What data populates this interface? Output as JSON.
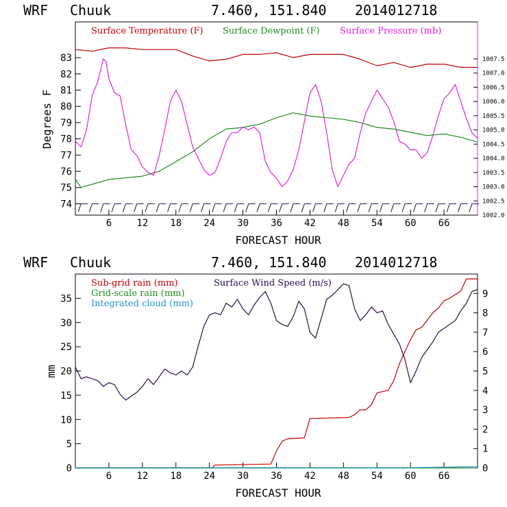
{
  "header": {
    "model": "WRF",
    "station": "Chuuk",
    "coords": "7.460, 151.840",
    "init": "2014012718"
  },
  "colors": {
    "temperature": "#c00000",
    "dewpoint": "#1e8a1e",
    "pressure": "#e020e0",
    "subgrid_rain": "#c00000",
    "gridscale_rain": "#1e8a1e",
    "cloud": "#1e90d0",
    "wind": "#2a0a4a",
    "barb": "#2a0a4a"
  },
  "chart_data": [
    {
      "type": "line",
      "legend": [
        "Surface Temperature (F)",
        "Surface Dewpoint (F)",
        "Surface Pressure (mb)"
      ],
      "xlabel": "FORECAST HOUR",
      "ylabel": "Degrees F",
      "xlim": [
        0,
        72
      ],
      "ylim": [
        73.3,
        85.2
      ],
      "xticks": [
        "6",
        "12",
        "18",
        "24",
        "30",
        "36",
        "42",
        "48",
        "54",
        "60",
        "66"
      ],
      "yticks": [
        "74",
        "75",
        "76",
        "77",
        "78",
        "79",
        "80",
        "81",
        "82",
        "83"
      ],
      "y2lim": [
        1002.0,
        1008.8
      ],
      "y2ticks": [
        "1002.0",
        "1002.5",
        "1003.0",
        "1003.5",
        "1004.0",
        "1004.5",
        "1005.0",
        "1005.5",
        "1006.0",
        "1006.5",
        "1007.0",
        "1007.5"
      ],
      "series": [
        {
          "name": "Surface Temperature (F)",
          "axis": "left",
          "x": [
            0,
            3,
            6,
            9,
            12,
            15,
            18,
            21,
            24,
            27,
            30,
            33,
            36,
            39,
            42,
            45,
            48,
            51,
            54,
            57,
            60,
            63,
            66,
            69,
            72
          ],
          "y": [
            83.5,
            83.4,
            83.6,
            83.6,
            83.5,
            83.5,
            83.5,
            83.1,
            82.8,
            82.9,
            83.2,
            83.2,
            83.3,
            83.0,
            83.2,
            83.2,
            83.2,
            82.9,
            82.5,
            82.7,
            82.4,
            82.6,
            82.6,
            82.4,
            82.4
          ]
        },
        {
          "name": "Surface Dewpoint (F)",
          "axis": "left",
          "x": [
            0,
            1,
            3,
            6,
            9,
            12,
            15,
            18,
            21,
            24,
            27,
            30,
            33,
            36,
            39,
            42,
            45,
            48,
            51,
            54,
            57,
            60,
            63,
            66,
            69,
            72
          ],
          "y": [
            75.5,
            75.0,
            75.2,
            75.5,
            75.6,
            75.7,
            76.0,
            76.6,
            77.2,
            78.0,
            78.6,
            78.7,
            78.9,
            79.3,
            79.6,
            79.4,
            79.3,
            79.2,
            79.0,
            78.7,
            78.6,
            78.4,
            78.2,
            78.3,
            78.1,
            77.8
          ]
        },
        {
          "name": "Surface Pressure (mb)",
          "axis": "right",
          "x": [
            0,
            1,
            2,
            3,
            4,
            5,
            5.5,
            6,
            7,
            8,
            9,
            10,
            11,
            12,
            13,
            14,
            15,
            16,
            17,
            18,
            19,
            20,
            21,
            22,
            23,
            24,
            25,
            26,
            27,
            28,
            29,
            30,
            31,
            32,
            33,
            34,
            35,
            36,
            37,
            38,
            39,
            40,
            41,
            42,
            43,
            44,
            45,
            46,
            47,
            48,
            49,
            50,
            51,
            52,
            53,
            54,
            55,
            56,
            57,
            58,
            59,
            60,
            61,
            62,
            63,
            64,
            65,
            66,
            67,
            68,
            69,
            70,
            71,
            72
          ],
          "y": [
            1004.6,
            1004.4,
            1005.0,
            1006.2,
            1006.7,
            1007.5,
            1007.4,
            1006.8,
            1006.3,
            1006.2,
            1005.2,
            1004.3,
            1004.1,
            1003.7,
            1003.5,
            1003.4,
            1004.1,
            1005.0,
            1006.0,
            1006.4,
            1006.0,
            1005.2,
            1004.4,
            1004.0,
            1003.6,
            1003.4,
            1003.5,
            1004.0,
            1004.6,
            1004.9,
            1004.9,
            1005.1,
            1005.0,
            1005.1,
            1004.9,
            1003.9,
            1003.5,
            1003.3,
            1003.0,
            1003.2,
            1003.6,
            1004.3,
            1005.3,
            1006.3,
            1006.6,
            1006.0,
            1004.9,
            1003.6,
            1003.0,
            1003.4,
            1003.8,
            1004.0,
            1004.9,
            1005.6,
            1006.0,
            1006.4,
            1006.1,
            1005.8,
            1005.3,
            1004.6,
            1004.5,
            1004.3,
            1004.3,
            1004.0,
            1004.2,
            1004.8,
            1005.5,
            1006.1,
            1006.3,
            1006.6,
            1006.0,
            1005.4,
            1004.9,
            1004.7
          ]
        }
      ],
      "wind_barbs": {
        "y": 74.0,
        "x": [
          1,
          3,
          5,
          7,
          9,
          11,
          13,
          15,
          17,
          19,
          21,
          23,
          25,
          27,
          29,
          31,
          33,
          35,
          37,
          39,
          41,
          43,
          45,
          47,
          49,
          51,
          53,
          55,
          57,
          59,
          61,
          63,
          65,
          67,
          69,
          71
        ]
      }
    },
    {
      "type": "line",
      "legend": [
        "Sub-grid rain (mm)",
        "Grid-scale rain (mm)",
        "Integrated cloud (mm)",
        "Surface Wind Speed (m/s)"
      ],
      "xlabel": "FORECAST HOUR",
      "ylabel": "mm",
      "xlim": [
        0,
        72
      ],
      "ylim": [
        0,
        40
      ],
      "xticks": [
        "6",
        "12",
        "18",
        "24",
        "30",
        "36",
        "42",
        "48",
        "54",
        "60",
        "66"
      ],
      "yticks": [
        "0",
        "5",
        "10",
        "15",
        "20",
        "25",
        "30",
        "35"
      ],
      "y2lim": [
        0,
        10
      ],
      "y2ticks": [
        "0",
        "1",
        "2",
        "3",
        "4",
        "5",
        "6",
        "7",
        "8",
        "9"
      ],
      "series": [
        {
          "name": "Sub-grid rain (mm)",
          "axis": "left",
          "x": [
            0,
            24.5,
            25,
            35,
            36,
            37,
            38,
            41,
            42,
            49,
            50,
            51,
            52,
            53,
            54,
            56,
            57,
            58,
            59,
            60,
            61,
            62,
            63,
            64,
            65,
            66,
            67,
            69,
            70,
            72
          ],
          "y": [
            0,
            0,
            0.6,
            0.8,
            3.5,
            5.5,
            6.0,
            6.2,
            10.2,
            10.4,
            11.0,
            12.0,
            12.0,
            13.0,
            15.5,
            16.0,
            18.0,
            21.5,
            24.0,
            26.5,
            28.5,
            29.0,
            30.5,
            32.0,
            33.0,
            34.5,
            35.0,
            36.5,
            39.0,
            39.0
          ]
        },
        {
          "name": "Grid-scale rain (mm)",
          "axis": "left",
          "x": [
            0,
            72
          ],
          "y": [
            0,
            0
          ]
        },
        {
          "name": "Integrated cloud (mm)",
          "axis": "left",
          "x": [
            0,
            60,
            66,
            72
          ],
          "y": [
            0.05,
            0.05,
            0.15,
            0.25
          ]
        },
        {
          "name": "Surface Wind Speed (m/s)",
          "axis": "right",
          "x": [
            0,
            1,
            2,
            3,
            4,
            5,
            6,
            7,
            8,
            9,
            10,
            11,
            12,
            13,
            14,
            15,
            16,
            17,
            18,
            19,
            20,
            21,
            22,
            23,
            24,
            25,
            26,
            27,
            28,
            29,
            30,
            31,
            32,
            33,
            34,
            35,
            36,
            37,
            38,
            39,
            40,
            41,
            42,
            43,
            44,
            45,
            46,
            47,
            48,
            49,
            50,
            51,
            52,
            53,
            54,
            55,
            56,
            57,
            58,
            59,
            60,
            61,
            62,
            63,
            64,
            65,
            66,
            67,
            68,
            69,
            70,
            71,
            72
          ],
          "y": [
            5.2,
            4.6,
            4.7,
            4.6,
            4.5,
            4.2,
            4.4,
            4.3,
            3.8,
            3.5,
            3.7,
            3.9,
            4.2,
            4.6,
            4.3,
            4.7,
            5.1,
            4.9,
            4.8,
            5.0,
            4.8,
            5.2,
            6.3,
            7.3,
            7.9,
            8.0,
            7.9,
            8.5,
            8.3,
            8.7,
            8.2,
            7.9,
            8.4,
            8.8,
            9.1,
            8.5,
            7.6,
            7.4,
            7.3,
            7.8,
            8.6,
            8.2,
            7.0,
            6.7,
            7.7,
            8.7,
            8.9,
            9.2,
            9.5,
            9.4,
            8.2,
            7.6,
            7.9,
            8.3,
            8.0,
            8.1,
            7.4,
            6.9,
            6.4,
            5.6,
            4.4,
            5.0,
            5.7,
            6.1,
            6.5,
            7.0,
            7.2,
            7.4,
            7.6,
            8.1,
            8.5,
            9.1,
            9.2
          ]
        }
      ]
    }
  ]
}
